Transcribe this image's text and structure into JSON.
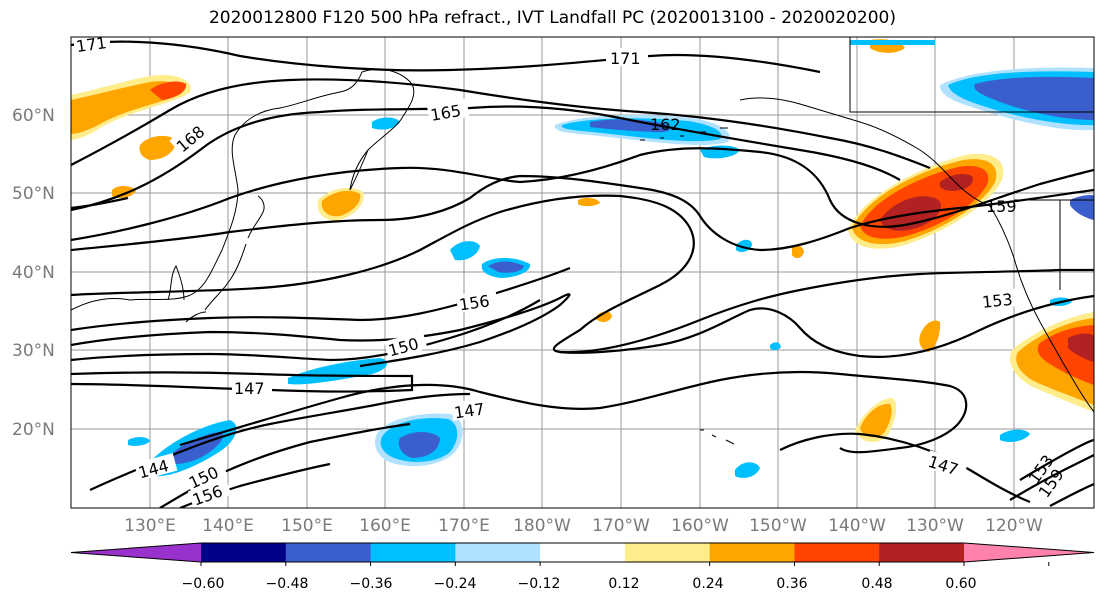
{
  "title": "2020012800 F120 500 hPa refract., IVT Landfall PC (2020013100 - 2020020200)",
  "lat_ticks": [
    "60°N",
    "50°N",
    "40°N",
    "30°N",
    "20°N"
  ],
  "lon_ticks": [
    "130°E",
    "140°E",
    "150°E",
    "160°E",
    "170°E",
    "180°W",
    "170°W",
    "160°W",
    "150°W",
    "140°W",
    "130°W",
    "120°W"
  ],
  "contour_labels": [
    "171",
    "171",
    "168",
    "165",
    "162",
    "159",
    "156",
    "153",
    "150",
    "147",
    "147",
    "147",
    "144",
    "150",
    "156",
    "153",
    "159"
  ],
  "colorbar": {
    "colors": [
      "#9932cc",
      "#00008b",
      "#3a5fcd",
      "#00bfff",
      "#b0e2ff",
      "#ffffff",
      "#ffec8b",
      "#ffa500",
      "#ff4500",
      "#b22222",
      "#ff82ab"
    ],
    "ticks": [
      "−0.60",
      "−0.48",
      "−0.36",
      "−0.24",
      "−0.12",
      "0.12",
      "0.24",
      "0.36",
      "0.48",
      "0.60"
    ]
  }
}
